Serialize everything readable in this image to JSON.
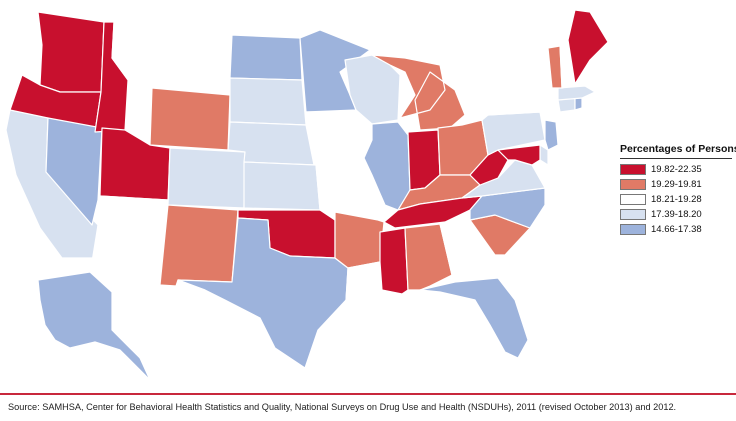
{
  "legend": {
    "title": "Percentages of Persons",
    "items": [
      {
        "label": "19.82-22.35",
        "color": "#c8102e"
      },
      {
        "label": "19.29-19.81",
        "color": "#e07a66"
      },
      {
        "label": "18.21-19.28",
        "color": "#ffffff"
      },
      {
        "label": "17.39-18.20",
        "color": "#d7e1f0"
      },
      {
        "label": "14.66-17.38",
        "color": "#9db3dc"
      }
    ]
  },
  "states": {
    "WA": 0,
    "OR": 0,
    "ID": 0,
    "UT": 0,
    "OK": 0,
    "TN": 0,
    "MS": 0,
    "IN": 0,
    "WV": 0,
    "ME": 0,
    "MD": 0,
    "WY": 1,
    "NM": 1,
    "AR": 1,
    "AL": 1,
    "SC": 1,
    "KY": 1,
    "OH": 1,
    "MI": 1,
    "VT": 1,
    "MT": 2,
    "AZ": 2,
    "IA": 2,
    "MO": 2,
    "LA": 2,
    "GA": 2,
    "NY": 2,
    "NH": 2,
    "HI": 2,
    "CA": 3,
    "CO": 3,
    "KS": 3,
    "NE": 3,
    "SD": 3,
    "WI": 3,
    "PA": 3,
    "VA": 3,
    "MA": 3,
    "CT": 3,
    "DE": 3,
    "NV": 4,
    "TX": 4,
    "ND": 4,
    "MN": 4,
    "IL": 4,
    "NC": 4,
    "FL": 4,
    "NJ": 4,
    "RI": 4,
    "AK": 4
  },
  "source": "Source: SAMHSA, Center for Behavioral Health Statistics and Quality, National Surveys on Drug Use and Health (NSDUHs), 2011 (revised October 2013) and 2012."
}
